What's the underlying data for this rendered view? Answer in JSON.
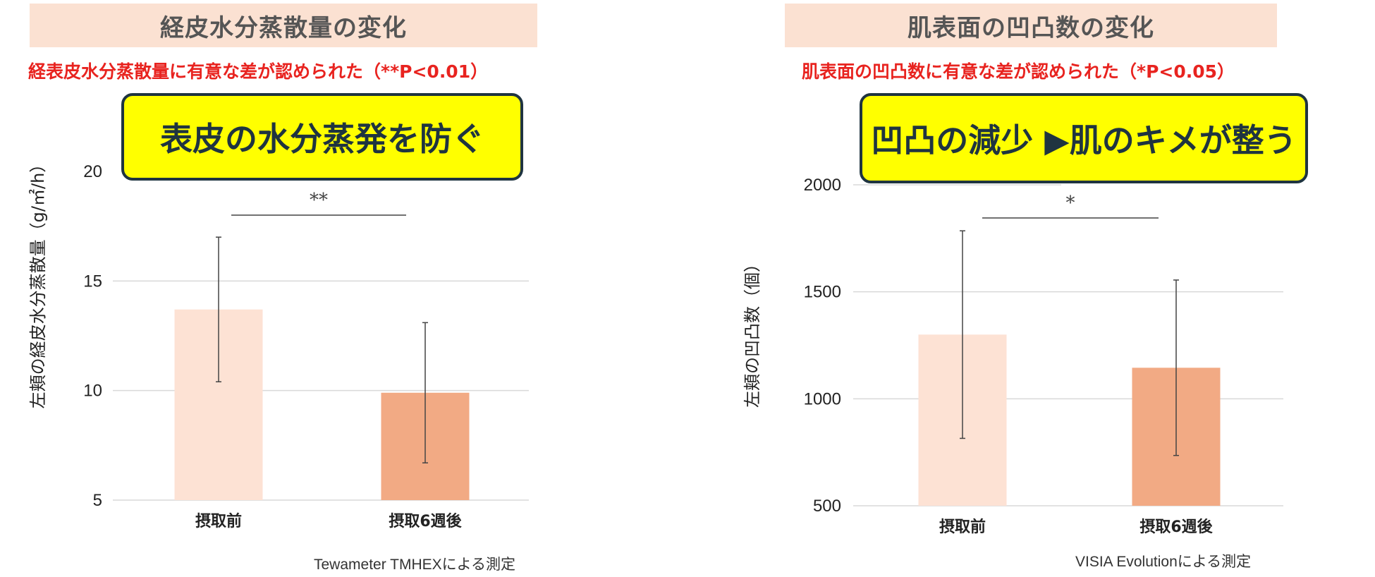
{
  "chart_data": [
    {
      "type": "bar",
      "title": "経皮水分蒸散量の変化",
      "subtitle": "経表皮水分蒸散量に有意な差が認められた（**P<0.01）",
      "callout": "表皮の水分蒸発を防ぐ",
      "ylabel": "左頬の経皮水分蒸散量（g/㎡/h）",
      "xlabel": "",
      "categories": [
        "摂取前",
        "摂取6週後"
      ],
      "values": [
        13.7,
        9.9
      ],
      "error": [
        3.3,
        3.2
      ],
      "ylim": [
        5,
        20
      ],
      "yticks": [
        5,
        10,
        15,
        20
      ],
      "significance": "**",
      "footnote": "Tewameter TMHEXによる測定",
      "colors": [
        "#fde2d4",
        "#f2aa84"
      ],
      "grid": true
    },
    {
      "type": "bar",
      "title": "肌表面の凹凸数の変化",
      "subtitle": "肌表面の凹凸数に有意な差が認められた（*P<0.05）",
      "callout": "凹凸の減少 ▶肌のキメが整う",
      "ylabel": "左頬の凹凸数（個）",
      "xlabel": "",
      "categories": [
        "摂取前",
        "摂取6週後"
      ],
      "values": [
        1300,
        1145
      ],
      "error": [
        485,
        410
      ],
      "ylim": [
        500,
        2000
      ],
      "yticks": [
        500,
        1000,
        1500,
        2000
      ],
      "significance": "*",
      "footnote": "VISIA Evolutionによる測定",
      "colors": [
        "#fde2d4",
        "#f2aa84"
      ],
      "grid": true
    }
  ]
}
